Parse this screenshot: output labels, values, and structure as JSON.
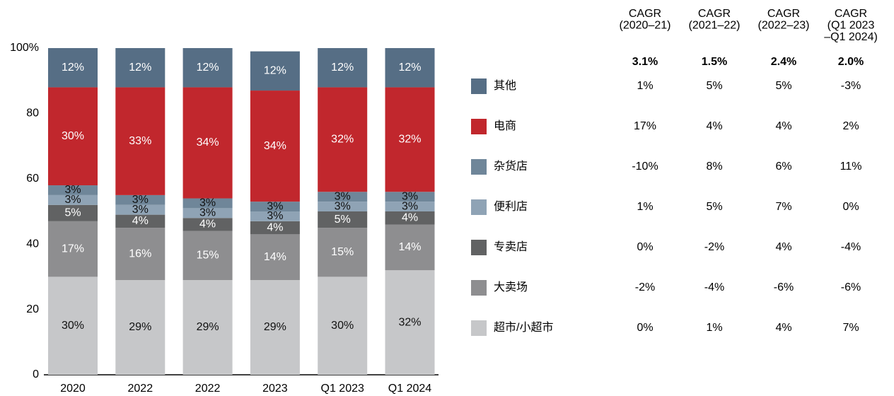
{
  "chart_data": {
    "type": "stacked_bar",
    "categories": [
      "2020",
      "2022",
      "2022",
      "2023",
      "Q1 2023",
      "Q1 2024"
    ],
    "ylim": [
      0,
      100
    ],
    "yticks": [
      0,
      20,
      40,
      60,
      80,
      {
        "value": 100,
        "label": "100%"
      }
    ],
    "series": [
      {
        "name": "超市/小超市",
        "color": "#c6c7c9",
        "values": [
          30,
          29,
          29,
          29,
          30,
          32
        ],
        "value_labels": [
          "30%",
          "29%",
          "29%",
          "29%",
          "30%",
          "32%"
        ],
        "cagr": [
          "0%",
          "1%",
          "4%",
          "7%"
        ]
      },
      {
        "name": "大卖场",
        "color": "#8e8e90",
        "values": [
          17,
          16,
          15,
          14,
          15,
          14
        ],
        "value_labels": [
          "17%",
          "16%",
          "15%",
          "14%",
          "15%",
          "14%"
        ],
        "cagr": [
          "-2%",
          "-4%",
          "-6%",
          "-6%"
        ]
      },
      {
        "name": "专卖店",
        "color": "#616263",
        "values": [
          5,
          4,
          4,
          4,
          5,
          4
        ],
        "value_labels": [
          "5%",
          "4%",
          "4%",
          "4%",
          "5%",
          "4%"
        ],
        "cagr": [
          "0%",
          "-2%",
          "4%",
          "-4%"
        ]
      },
      {
        "name": "便利店",
        "color": "#8fa3b5",
        "values": [
          3,
          3,
          3,
          3,
          3,
          3
        ],
        "value_labels": [
          "3%",
          "3%",
          "3%",
          "3%",
          "3%",
          "3%"
        ],
        "cagr": [
          "1%",
          "5%",
          "7%",
          "0%"
        ]
      },
      {
        "name": "杂货店",
        "color": "#6f8699",
        "values": [
          3,
          3,
          3,
          3,
          3,
          3
        ],
        "value_labels": [
          "3%",
          "3%",
          "3%",
          "3%",
          "3%",
          "3%"
        ],
        "cagr": [
          "-10%",
          "8%",
          "6%",
          "11%"
        ]
      },
      {
        "name": "电商",
        "color": "#c1272d",
        "values": [
          30,
          33,
          34,
          34,
          32,
          32
        ],
        "value_labels": [
          "30%",
          "33%",
          "34%",
          "34%",
          "32%",
          "32%"
        ],
        "cagr": [
          "17%",
          "4%",
          "4%",
          "2%"
        ]
      },
      {
        "name": "其他",
        "color": "#566e85",
        "values": [
          12,
          12,
          12,
          12,
          12,
          12
        ],
        "value_labels": [
          "12%",
          "12%",
          "12%",
          "12%",
          "12%",
          "12%"
        ],
        "cagr": [
          "1%",
          "5%",
          "5%",
          "-3%"
        ]
      }
    ],
    "cagr_headers": [
      [
        "CAGR",
        "(2020–21)"
      ],
      [
        "CAGR",
        "(2021–22)"
      ],
      [
        "CAGR",
        "(2022–23)"
      ],
      [
        "CAGR",
        "(Q1 2023",
        "–Q1 2024)"
      ]
    ],
    "cagr_totals": [
      "3.1%",
      "1.5%",
      "2.4%",
      "2.0%"
    ]
  }
}
